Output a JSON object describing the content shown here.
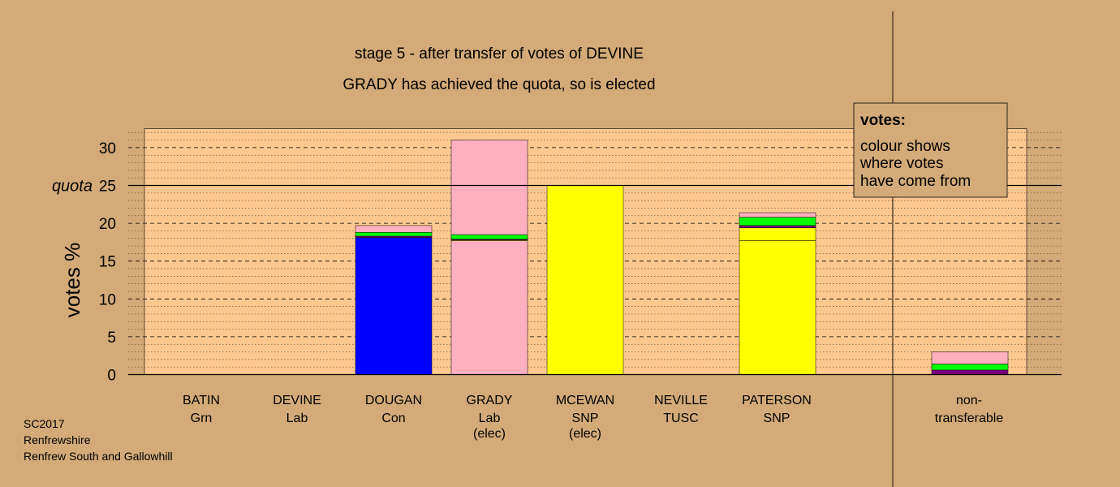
{
  "title": "stage 5 - after transfer of votes of DEVINE",
  "subtitle": "GRADY has achieved the quota, so is elected",
  "footer": {
    "line1": "SC2017",
    "line2": "Renfrewshire",
    "line3": "Renfrew South and Gallowhill"
  },
  "legend": {
    "title": "votes:",
    "line1": "colour shows",
    "line2": "where votes",
    "line3": "have come from"
  },
  "colors": {
    "background": "#d4aa78",
    "plot_bg": "#fdc890",
    "Con": "#0000ff",
    "Lab": "#ffb0c0",
    "SNP": "#ffff00",
    "Grn": "#00ff00",
    "TUSC": "#800080"
  },
  "chart_data": {
    "type": "bar",
    "stacked": true,
    "ylabel": "votes %",
    "ylim": [
      0,
      32.5
    ],
    "yticks": [
      0,
      5,
      10,
      15,
      20,
      25,
      30
    ],
    "quota": {
      "label": "quota",
      "value": 25
    },
    "grid": true,
    "legend_position": "top-right",
    "categories": [
      {
        "name": "BATIN",
        "party": "Grn",
        "status": ""
      },
      {
        "name": "DEVINE",
        "party": "Lab",
        "status": ""
      },
      {
        "name": "DOUGAN",
        "party": "Con",
        "status": ""
      },
      {
        "name": "GRADY",
        "party": "Lab",
        "status": "(elec)"
      },
      {
        "name": "MCEWAN",
        "party": "SNP",
        "status": "(elec)"
      },
      {
        "name": "NEVILLE",
        "party": "TUSC",
        "status": ""
      },
      {
        "name": "PATERSON",
        "party": "SNP",
        "status": ""
      },
      {
        "name": "non-",
        "party": "transferable",
        "status": ""
      }
    ],
    "stacks": [
      [],
      [],
      [
        {
          "source": "Con",
          "value": 18.1
        },
        {
          "source": "TUSC",
          "value": 0.2
        },
        {
          "source": "Grn",
          "value": 0.5
        },
        {
          "source": "Lab",
          "value": 0.9
        }
      ],
      [
        {
          "source": "Lab",
          "value": 17.7
        },
        {
          "source": "SNP",
          "value": 0.1
        },
        {
          "source": "TUSC",
          "value": 0.1
        },
        {
          "source": "Grn",
          "value": 0.6
        },
        {
          "source": "Lab",
          "value": 12.5
        }
      ],
      [
        {
          "source": "SNP",
          "value": 25.0
        }
      ],
      [],
      [
        {
          "source": "SNP",
          "value": 17.7
        },
        {
          "source": "SNP",
          "value": 1.7
        },
        {
          "source": "TUSC",
          "value": 0.3
        },
        {
          "source": "Grn",
          "value": 1.1
        },
        {
          "source": "Lab",
          "value": 0.6
        }
      ],
      [
        {
          "source": "TUSC",
          "value": 0.6
        },
        {
          "source": "Grn",
          "value": 0.8
        },
        {
          "source": "Lab",
          "value": 1.6
        }
      ]
    ]
  }
}
